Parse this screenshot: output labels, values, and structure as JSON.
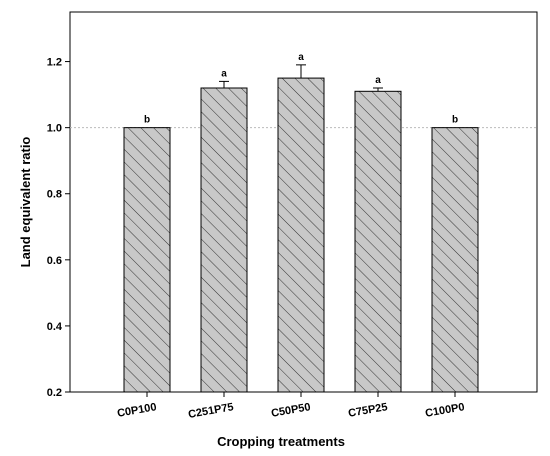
{
  "chart_data": {
    "type": "bar",
    "title": "",
    "xlabel": "Cropping treatments",
    "ylabel": "Land equivalent ratio",
    "ylim": [
      0.2,
      1.35
    ],
    "yticks": [
      0.2,
      0.4,
      0.6,
      0.8,
      1.0,
      1.2
    ],
    "ytick_labels": [
      "0.2",
      "0.4",
      "0.6",
      "0.8",
      "1.0",
      "1.2"
    ],
    "reference_line": 1.0,
    "categories": [
      "C0P100",
      "C251P75",
      "C50P50",
      "C75P25",
      "C100P0"
    ],
    "values": [
      1.0,
      1.12,
      1.15,
      1.11,
      1.0
    ],
    "errors": [
      0,
      0.02,
      0.04,
      0.01,
      0
    ],
    "significance_letters": [
      "b",
      "a",
      "a",
      "a",
      "b"
    ],
    "bar_fill": "#c8c8c8",
    "bar_pattern": "diagonal-hatch",
    "grid": false
  }
}
